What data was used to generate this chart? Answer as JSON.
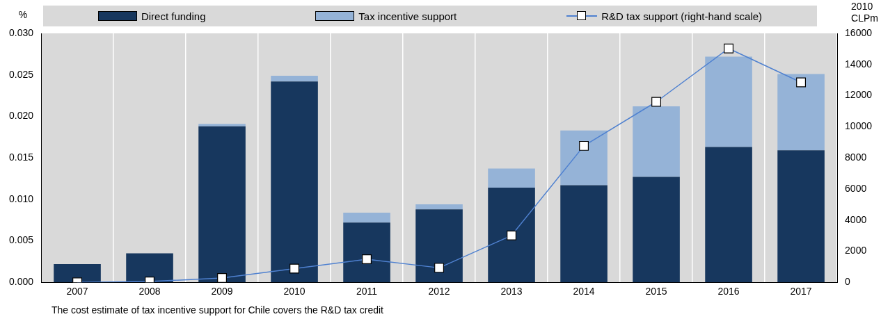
{
  "chart_data": {
    "type": "bar",
    "stacked": true,
    "categories": [
      "2007",
      "2008",
      "2009",
      "2010",
      "2011",
      "2012",
      "2013",
      "2014",
      "2015",
      "2016",
      "2017"
    ],
    "series": [
      {
        "name": "Direct funding",
        "color": "#17375e",
        "values": [
          0.0022,
          0.0035,
          0.0188,
          0.0242,
          0.0072,
          0.0088,
          0.0114,
          0.0117,
          0.0127,
          0.0163,
          0.0159
        ]
      },
      {
        "name": "Tax incentive support",
        "color": "#95b3d7",
        "values": [
          0,
          0,
          0.0003,
          0.0007,
          0.0012,
          0.0006,
          0.0023,
          0.0066,
          0.0085,
          0.0109,
          0.0092
        ]
      },
      {
        "name": "R&D tax support (right-hand scale)",
        "type": "line",
        "axis": "y2",
        "color": "#4f81d0",
        "marker": "square",
        "values": [
          0,
          50,
          280,
          880,
          1480,
          930,
          3010,
          8770,
          11600,
          15030,
          12850
        ]
      }
    ],
    "ylabel": "%",
    "y2label": "2010 CLPm",
    "ylim": [
      0,
      0.03
    ],
    "yticks": [
      {
        "value": 0,
        "label": "0.000"
      },
      {
        "value": 0.005,
        "label": "0.005"
      },
      {
        "value": 0.01,
        "label": "0.010"
      },
      {
        "value": 0.015,
        "label": "0.015"
      },
      {
        "value": 0.02,
        "label": "0.020"
      },
      {
        "value": 0.025,
        "label": "0.025"
      },
      {
        "value": 0.03,
        "label": "0.030"
      }
    ],
    "y2lim": [
      0,
      16000
    ],
    "y2ticks": [
      0,
      2000,
      4000,
      6000,
      8000,
      10000,
      12000,
      14000,
      16000
    ],
    "grid": "x",
    "legend": "top",
    "annotations": [
      "The cost estimate of tax incentive support for Chile covers the R&D tax credit"
    ]
  }
}
